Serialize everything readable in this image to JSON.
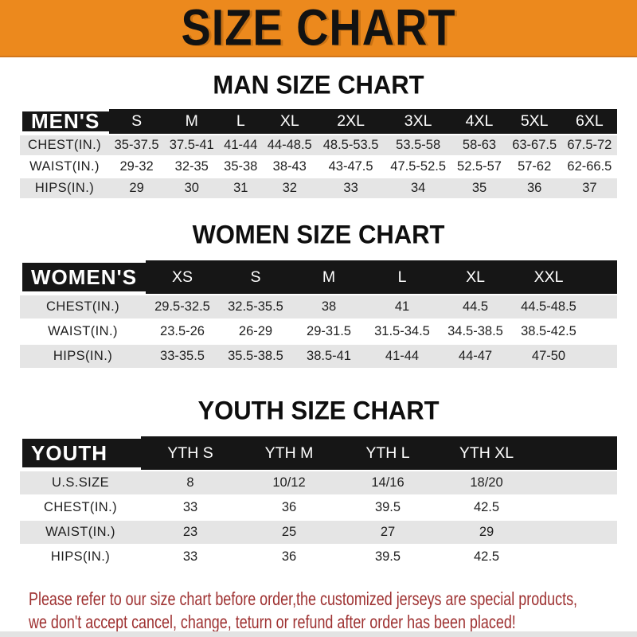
{
  "banner": {
    "title": "SIZE CHART"
  },
  "colors": {
    "banner_bg": "#ec891d",
    "banner_edge": "#d2761b",
    "header_bar_bg": "#161616",
    "header_bar_text": "#ffffff",
    "alt_row_bg": "#e5e5e5",
    "body_text": "#1f1f1f",
    "footer_text": "#9e3131"
  },
  "sections": [
    {
      "heading": "MAN SIZE CHART",
      "table": {
        "label": "MEN'S",
        "columns": [
          "S",
          "M",
          "L",
          "XL",
          "2XL",
          "3XL",
          "4XL",
          "5XL",
          "6XL"
        ],
        "rows": [
          {
            "label": "CHEST(IN.)",
            "values": [
              "35-37.5",
              "37.5-41",
              "41-44",
              "44-48.5",
              "48.5-53.5",
              "53.5-58",
              "58-63",
              "63-67.5",
              "67.5-72"
            ]
          },
          {
            "label": "WAIST(IN.)",
            "values": [
              "29-32",
              "32-35",
              "35-38",
              "38-43",
              "43-47.5",
              "47.5-52.5",
              "52.5-57",
              "57-62",
              "62-66.5"
            ]
          },
          {
            "label": "HIPS(IN.)",
            "values": [
              "29",
              "30",
              "31",
              "32",
              "33",
              "34",
              "35",
              "36",
              "37"
            ]
          }
        ]
      }
    },
    {
      "heading": "WOMEN SIZE CHART",
      "table": {
        "label": "WOMEN'S",
        "columns": [
          "XS",
          "S",
          "M",
          "L",
          "XL",
          "XXL"
        ],
        "rows": [
          {
            "label": "CHEST(IN.)",
            "values": [
              "29.5-32.5",
              "32.5-35.5",
              "38",
              "41",
              "44.5",
              "44.5-48.5"
            ]
          },
          {
            "label": "WAIST(IN.)",
            "values": [
              "23.5-26",
              "26-29",
              "29-31.5",
              "31.5-34.5",
              "34.5-38.5",
              "38.5-42.5"
            ]
          },
          {
            "label": "HIPS(IN.)",
            "values": [
              "33-35.5",
              "35.5-38.5",
              "38.5-41",
              "41-44",
              "44-47",
              "47-50"
            ]
          }
        ]
      }
    },
    {
      "heading": "YOUTH SIZE CHART",
      "table": {
        "label": "YOUTH",
        "columns": [
          "YTH S",
          "YTH M",
          "YTH L",
          "YTH XL"
        ],
        "rows": [
          {
            "label": "U.S.SIZE",
            "values": [
              "8",
              "10/12",
              "14/16",
              "18/20"
            ]
          },
          {
            "label": "CHEST(IN.)",
            "values": [
              "33",
              "36",
              "39.5",
              "42.5"
            ]
          },
          {
            "label": "WAIST(IN.)",
            "values": [
              "23",
              "25",
              "27",
              "29"
            ]
          },
          {
            "label": "HIPS(IN.)",
            "values": [
              "33",
              "36",
              "39.5",
              "42.5"
            ]
          }
        ]
      }
    }
  ],
  "footer": {
    "line1": "Please refer to our size chart before order,the customized jerseys are special products,",
    "line2": "we don't accept cancel, change, teturn or refund after order has been placed!"
  }
}
